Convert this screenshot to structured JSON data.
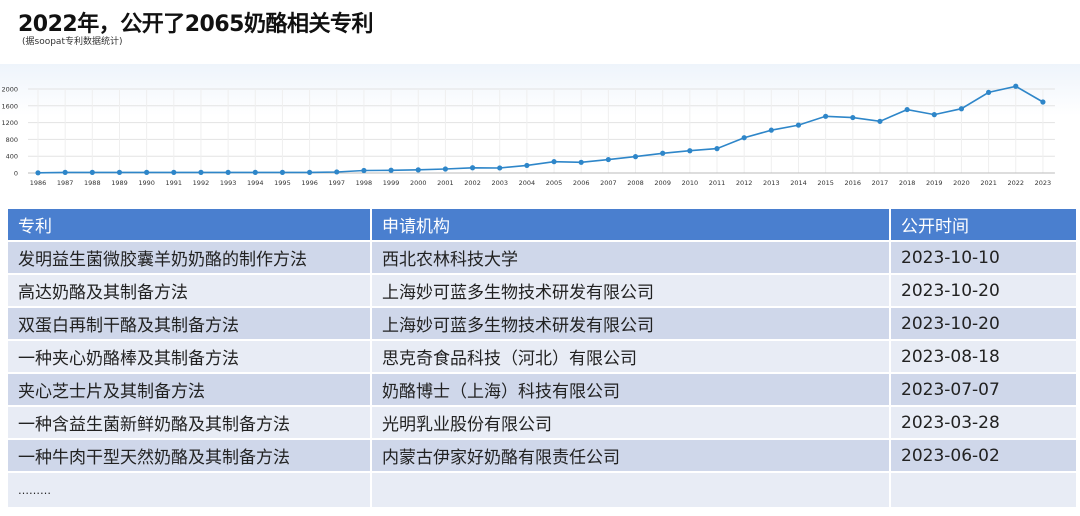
{
  "header": {
    "title": "2022年，公开了2065奶酪相关专利",
    "subtitle": "(据soopat专利数据统计)"
  },
  "chart_data": {
    "type": "line",
    "x": [
      "1986",
      "1987",
      "1988",
      "1989",
      "1990",
      "1991",
      "1992",
      "1993",
      "1994",
      "1995",
      "1996",
      "1997",
      "1998",
      "1999",
      "2000",
      "2001",
      "2002",
      "2003",
      "2004",
      "2005",
      "2006",
      "2007",
      "2008",
      "2009",
      "2010",
      "2011",
      "2012",
      "2013",
      "2014",
      "2015",
      "2016",
      "2017",
      "2018",
      "2019",
      "2020",
      "2021",
      "2022",
      "2023"
    ],
    "series": [
      {
        "values": [
          5,
          15,
          15,
          15,
          15,
          15,
          15,
          15,
          15,
          15,
          15,
          25,
          60,
          65,
          75,
          95,
          125,
          120,
          180,
          270,
          255,
          320,
          390,
          470,
          530,
          580,
          840,
          1020,
          1140,
          1350,
          1320,
          1230,
          1510,
          1390,
          1530,
          1920,
          2065,
          1690
        ]
      }
    ],
    "yticks": [
      0,
      400,
      800,
      1200,
      1600,
      2000
    ],
    "ylim": [
      0,
      2100
    ],
    "grid": true,
    "color": "#2e86c9"
  },
  "table": {
    "headers": [
      "专利",
      "申请机构",
      "公开时间"
    ],
    "rows": [
      [
        "发明益生菌微胶囊羊奶奶酪的制作方法",
        "西北农林科技大学",
        "2023-10-10"
      ],
      [
        "高达奶酪及其制备方法",
        "上海妙可蓝多生物技术研发有限公司",
        "2023-10-20"
      ],
      [
        "双蛋白再制干酪及其制备方法",
        "上海妙可蓝多生物技术研发有限公司",
        "2023-10-20"
      ],
      [
        "一种夹心奶酪棒及其制备方法",
        "思克奇食品科技（河北）有限公司",
        "2023-08-18"
      ],
      [
        "夹心芝士片及其制备方法",
        "奶酪博士（上海）科技有限公司",
        "2023-07-07"
      ],
      [
        "一种含益生菌新鲜奶酪及其制备方法",
        "光明乳业股份有限公司",
        "2023-03-28"
      ],
      [
        "一种牛肉干型天然奶酪及其制备方法",
        "内蒙古伊家好奶酪有限责任公司",
        "2023-06-02"
      ]
    ],
    "ellipsis": "………"
  }
}
